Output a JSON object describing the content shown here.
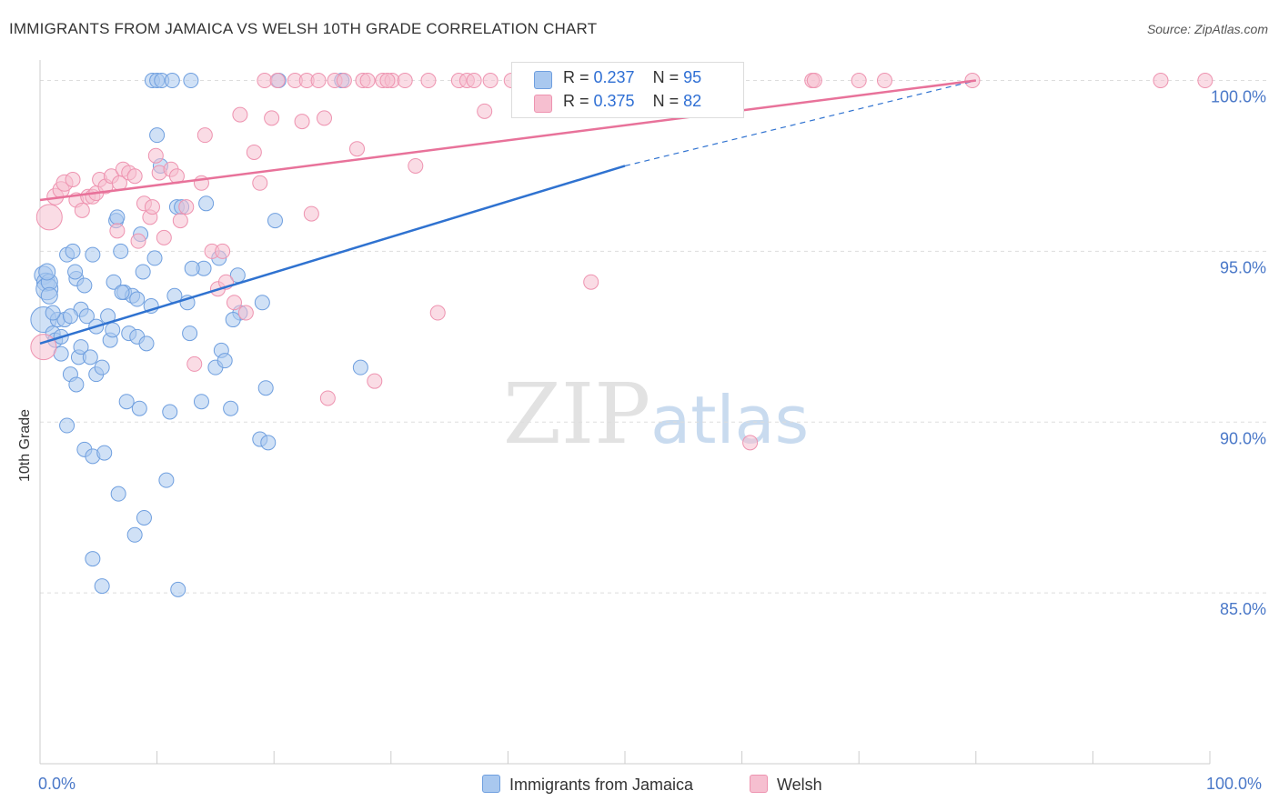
{
  "title": "IMMIGRANTS FROM JAMAICA VS WELSH 10TH GRADE CORRELATION CHART",
  "source": "Source: ZipAtlas.com",
  "watermark": {
    "zip": "ZIP",
    "atlas": "atlas"
  },
  "legend_top": {
    "rows": [
      {
        "r_label": "R = ",
        "r_value": "0.237",
        "n_label": "N = ",
        "n_value": "95"
      },
      {
        "r_label": "R = ",
        "r_value": "0.375",
        "n_label": "N = ",
        "n_value": "82"
      }
    ]
  },
  "legend_bottom": [
    "Immigrants from Jamaica",
    "Welsh"
  ],
  "colors": {
    "jamaica_fill": "#a9c8ef",
    "jamaica_stroke": "#6f9fdf",
    "jamaica_line": "#2f72d0",
    "welsh_fill": "#f6bfd0",
    "welsh_stroke": "#ee93b0",
    "welsh_line": "#e8729a",
    "grid": "#dddddd",
    "axis_text": "#4a78c8"
  },
  "chart_data": {
    "type": "scatter",
    "title": "IMMIGRANTS FROM JAMAICA VS WELSH 10TH GRADE CORRELATION CHART",
    "xlabel": "",
    "ylabel": "10th Grade",
    "x_tick_labels": [
      "0.0%",
      "100.0%"
    ],
    "y_tick_labels": [
      "100.0%",
      "95.0%",
      "90.0%",
      "85.0%"
    ],
    "xlim": [
      0,
      100
    ],
    "ylim": [
      80.0,
      100.6
    ],
    "grid": true,
    "series": [
      {
        "name": "Immigrants from Jamaica",
        "r": 0.237,
        "n": 95,
        "trend": {
          "x0": 0,
          "y0": 92.3,
          "x1": 50,
          "y1": 97.5,
          "dashed_to_x": 80,
          "dashed_to_y": 100.0
        },
        "points": [
          [
            0.3,
            93.0,
            14
          ],
          [
            0.3,
            94.3,
            10
          ],
          [
            0.5,
            94.1,
            10
          ],
          [
            0.6,
            93.9,
            12
          ],
          [
            0.8,
            94.1,
            9
          ],
          [
            0.8,
            93.7,
            9
          ],
          [
            1.1,
            92.6,
            8
          ],
          [
            1.3,
            92.4,
            8
          ],
          [
            1.5,
            93.0,
            8
          ],
          [
            1.8,
            92.0,
            8
          ],
          [
            2.1,
            93.0,
            8
          ],
          [
            2.3,
            89.9,
            8
          ],
          [
            2.3,
            94.9,
            8
          ],
          [
            2.6,
            91.4,
            8
          ],
          [
            2.8,
            95.0,
            8
          ],
          [
            3.1,
            91.1,
            8
          ],
          [
            3.1,
            94.2,
            8
          ],
          [
            3.3,
            91.9,
            8
          ],
          [
            3.5,
            93.3,
            8
          ],
          [
            3.5,
            92.2,
            8
          ],
          [
            3.8,
            94.0,
            8
          ],
          [
            3.8,
            89.2,
            8
          ],
          [
            4.0,
            93.1,
            8
          ],
          [
            4.3,
            91.9,
            8
          ],
          [
            4.5,
            94.9,
            8
          ],
          [
            4.5,
            89.0,
            8
          ],
          [
            4.8,
            92.8,
            8
          ],
          [
            4.8,
            91.4,
            8
          ],
          [
            5.3,
            91.6,
            8
          ],
          [
            5.5,
            89.1,
            8
          ],
          [
            5.8,
            93.1,
            8
          ],
          [
            6.0,
            92.4,
            8
          ],
          [
            6.3,
            94.1,
            8
          ],
          [
            6.5,
            95.9,
            8
          ],
          [
            6.6,
            96.0,
            8
          ],
          [
            6.7,
            87.9,
            8
          ],
          [
            6.9,
            95.0,
            8
          ],
          [
            7.2,
            93.8,
            8
          ],
          [
            7.4,
            90.6,
            8
          ],
          [
            7.6,
            92.6,
            8
          ],
          [
            7.9,
            93.7,
            8
          ],
          [
            8.1,
            86.7,
            8
          ],
          [
            8.3,
            93.6,
            8
          ],
          [
            8.3,
            92.5,
            8
          ],
          [
            8.5,
            90.4,
            8
          ],
          [
            8.6,
            95.5,
            8
          ],
          [
            8.8,
            94.4,
            8
          ],
          [
            8.9,
            87.2,
            8
          ],
          [
            9.1,
            92.3,
            8
          ],
          [
            9.5,
            93.4,
            8
          ],
          [
            9.6,
            100.0,
            8
          ],
          [
            9.8,
            94.8,
            8
          ],
          [
            10.0,
            98.4,
            8
          ],
          [
            10.0,
            100.0,
            8
          ],
          [
            10.3,
            97.5,
            8
          ],
          [
            10.4,
            100.0,
            8
          ],
          [
            10.8,
            88.3,
            8
          ],
          [
            11.1,
            90.3,
            8
          ],
          [
            11.3,
            100.0,
            8
          ],
          [
            11.5,
            93.7,
            8
          ],
          [
            11.7,
            96.3,
            8
          ],
          [
            11.8,
            85.1,
            8
          ],
          [
            12.1,
            96.3,
            8
          ],
          [
            12.6,
            93.5,
            8
          ],
          [
            12.8,
            92.6,
            8
          ],
          [
            12.9,
            100.0,
            8
          ],
          [
            13.8,
            90.6,
            8
          ],
          [
            14.0,
            94.5,
            8
          ],
          [
            14.2,
            96.4,
            8
          ],
          [
            15.0,
            91.6,
            8
          ],
          [
            15.3,
            94.8,
            8
          ],
          [
            15.5,
            92.1,
            8
          ],
          [
            15.8,
            91.8,
            8
          ],
          [
            16.3,
            90.4,
            8
          ],
          [
            16.9,
            94.3,
            8
          ],
          [
            17.1,
            93.2,
            8
          ],
          [
            18.8,
            89.5,
            8
          ],
          [
            19.0,
            93.5,
            8
          ],
          [
            19.3,
            91.0,
            8
          ],
          [
            19.5,
            89.4,
            8
          ],
          [
            20.1,
            95.9,
            8
          ],
          [
            20.4,
            100.0,
            8
          ],
          [
            25.8,
            100.0,
            8
          ],
          [
            27.4,
            91.6,
            8
          ],
          [
            4.5,
            86.0,
            8
          ],
          [
            5.3,
            85.2,
            8
          ],
          [
            1.8,
            92.5,
            8
          ],
          [
            2.6,
            93.1,
            8
          ],
          [
            1.1,
            93.2,
            8
          ],
          [
            0.6,
            94.4,
            9
          ],
          [
            6.2,
            92.7,
            8
          ],
          [
            7.0,
            93.8,
            8
          ],
          [
            13.0,
            94.5,
            8
          ],
          [
            16.5,
            93.0,
            8
          ],
          [
            3.0,
            94.4,
            8
          ]
        ]
      },
      {
        "name": "Welsh",
        "r": 0.375,
        "n": 82,
        "trend": {
          "x0": 0,
          "y0": 96.5,
          "x1": 80,
          "y1": 100.0
        },
        "points": [
          [
            0.3,
            92.2,
            14
          ],
          [
            0.8,
            96.0,
            14
          ],
          [
            1.3,
            96.6,
            9
          ],
          [
            1.8,
            96.8,
            9
          ],
          [
            2.1,
            97.0,
            9
          ],
          [
            2.8,
            97.1,
            8
          ],
          [
            3.1,
            96.5,
            8
          ],
          [
            3.6,
            96.2,
            8
          ],
          [
            4.1,
            96.6,
            8
          ],
          [
            4.5,
            96.6,
            8
          ],
          [
            4.8,
            96.7,
            8
          ],
          [
            5.1,
            97.1,
            8
          ],
          [
            5.6,
            96.9,
            8
          ],
          [
            6.1,
            97.2,
            8
          ],
          [
            6.6,
            95.6,
            8
          ],
          [
            6.8,
            97.0,
            8
          ],
          [
            7.1,
            97.4,
            8
          ],
          [
            7.6,
            97.3,
            8
          ],
          [
            8.1,
            97.2,
            8
          ],
          [
            8.4,
            95.3,
            8
          ],
          [
            8.9,
            96.4,
            8
          ],
          [
            9.4,
            96.0,
            8
          ],
          [
            9.6,
            96.3,
            8
          ],
          [
            9.9,
            97.8,
            8
          ],
          [
            10.2,
            97.3,
            8
          ],
          [
            10.6,
            95.4,
            8
          ],
          [
            11.2,
            97.4,
            8
          ],
          [
            11.7,
            97.2,
            8
          ],
          [
            12.0,
            95.9,
            8
          ],
          [
            12.5,
            96.3,
            8
          ],
          [
            13.2,
            91.7,
            8
          ],
          [
            13.8,
            97.0,
            8
          ],
          [
            14.1,
            98.4,
            8
          ],
          [
            14.7,
            95.0,
            8
          ],
          [
            15.2,
            93.9,
            8
          ],
          [
            15.6,
            95.0,
            8
          ],
          [
            15.9,
            94.1,
            8
          ],
          [
            16.6,
            93.5,
            8
          ],
          [
            17.1,
            99.0,
            8
          ],
          [
            17.6,
            93.2,
            8
          ],
          [
            18.3,
            97.9,
            8
          ],
          [
            18.8,
            97.0,
            8
          ],
          [
            19.2,
            100.0,
            8
          ],
          [
            19.8,
            98.9,
            8
          ],
          [
            20.3,
            100.0,
            8
          ],
          [
            21.8,
            100.0,
            8
          ],
          [
            22.4,
            98.8,
            8
          ],
          [
            22.8,
            100.0,
            8
          ],
          [
            23.2,
            96.1,
            8
          ],
          [
            23.8,
            100.0,
            8
          ],
          [
            24.3,
            98.9,
            8
          ],
          [
            24.6,
            90.7,
            8
          ],
          [
            25.2,
            100.0,
            8
          ],
          [
            26.0,
            100.0,
            8
          ],
          [
            27.1,
            98.0,
            8
          ],
          [
            27.6,
            100.0,
            8
          ],
          [
            28.0,
            100.0,
            8
          ],
          [
            28.6,
            91.2,
            8
          ],
          [
            29.3,
            100.0,
            8
          ],
          [
            30.1,
            100.0,
            8
          ],
          [
            31.2,
            100.0,
            8
          ],
          [
            32.1,
            97.5,
            8
          ],
          [
            33.2,
            100.0,
            8
          ],
          [
            34.0,
            93.2,
            8
          ],
          [
            35.8,
            100.0,
            8
          ],
          [
            36.5,
            100.0,
            8
          ],
          [
            37.1,
            100.0,
            8
          ],
          [
            38.0,
            99.1,
            8
          ],
          [
            38.5,
            100.0,
            8
          ],
          [
            40.3,
            100.0,
            8
          ],
          [
            41.2,
            100.0,
            8
          ],
          [
            42.4,
            100.0,
            8
          ],
          [
            47.1,
            94.1,
            8
          ],
          [
            60.7,
            89.4,
            8
          ],
          [
            66.0,
            100.0,
            8
          ],
          [
            66.2,
            100.0,
            8
          ],
          [
            70.0,
            100.0,
            8
          ],
          [
            72.2,
            100.0,
            8
          ],
          [
            79.7,
            100.0,
            8
          ],
          [
            95.8,
            100.0,
            8
          ],
          [
            99.6,
            100.0,
            8
          ],
          [
            29.7,
            100.0,
            8
          ]
        ]
      }
    ]
  }
}
